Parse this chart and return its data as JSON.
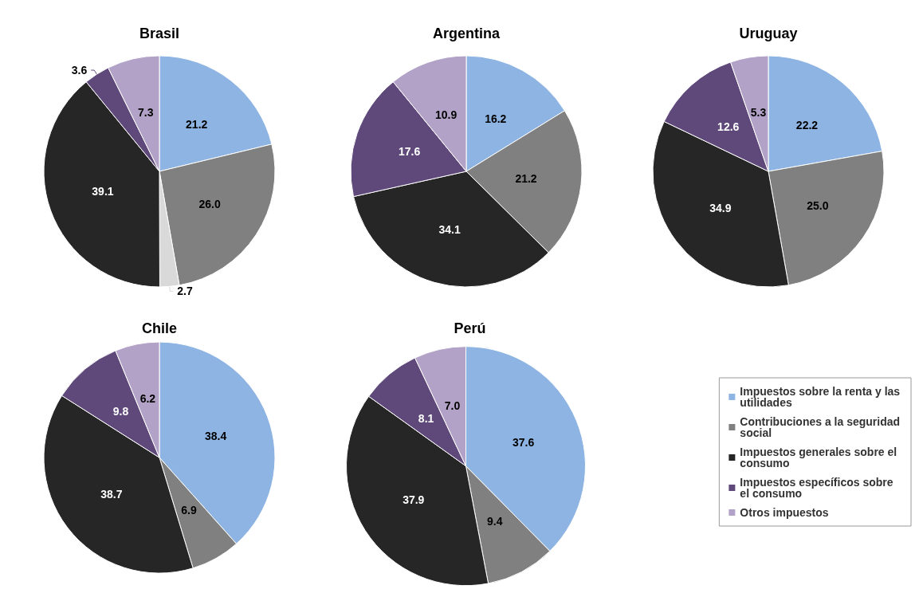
{
  "chart_data": [
    {
      "type": "pie",
      "title": "Brasil",
      "categories": [
        null,
        null,
        null,
        null,
        null,
        null
      ],
      "values": [
        21.2,
        26,
        2.7,
        39.1,
        3.6,
        7.3
      ],
      "value_labels": [
        "21.2",
        "26.0",
        "2.7",
        "39.1",
        "3.6",
        "7.3"
      ],
      "colors": [
        "#8eb4e3",
        "#808080",
        "#d9d9d9",
        "#262626",
        "#5f497a",
        "#b3a2c7"
      ],
      "legend": false
    },
    {
      "type": "pie",
      "title": "Argentina",
      "categories": [
        null,
        null,
        null,
        null,
        null
      ],
      "values": [
        16.2,
        21.2,
        34.1,
        17.6,
        10.9
      ],
      "value_labels": [
        "16.2",
        "21.2",
        "34.1",
        "17.6",
        "10.9"
      ],
      "colors": [
        "#8eb4e3",
        "#808080",
        "#262626",
        "#5f497a",
        "#b3a2c7"
      ],
      "legend": false
    },
    {
      "type": "pie",
      "title": "Uruguay",
      "categories": [
        null,
        null,
        null,
        null,
        null
      ],
      "values": [
        22.2,
        25,
        34.9,
        12.6,
        5.3
      ],
      "value_labels": [
        "22.2",
        "25.0",
        "34.9",
        "12.6",
        "5.3"
      ],
      "colors": [
        "#8eb4e3",
        "#808080",
        "#262626",
        "#5f497a",
        "#b3a2c7"
      ],
      "legend": false
    },
    {
      "type": "pie",
      "title": "Chile",
      "categories": [
        null,
        null,
        null,
        null,
        null
      ],
      "values": [
        38.4,
        6.9,
        38.7,
        9.8,
        6.2
      ],
      "value_labels": [
        "38.4",
        "6.9",
        "38.7",
        "9.8",
        "6.2"
      ],
      "colors": [
        "#8eb4e3",
        "#808080",
        "#262626",
        "#5f497a",
        "#b3a2c7"
      ],
      "legend": false
    },
    {
      "type": "pie",
      "title": "Perú",
      "categories": [
        "Impuestos sobre la renta y las utilidades",
        "Contribuciones a la seguridad social",
        "Impuestos generales sobre el consumo",
        "Impuestos específicos sobre el consumo",
        "Otros impuestos"
      ],
      "values": [
        37.6,
        9.4,
        37.9,
        8.1,
        7
      ],
      "value_labels": [
        "37.6",
        "9.4",
        "37.9",
        "8.1",
        "7.0"
      ],
      "colors": [
        "#8eb4e3",
        "#808080",
        "#262626",
        "#5f497a",
        "#b3a2c7"
      ],
      "legend": "right"
    }
  ]
}
